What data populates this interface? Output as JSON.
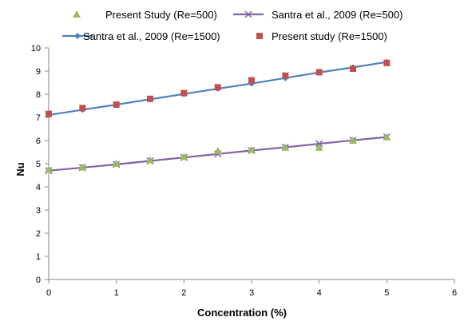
{
  "chart_data": {
    "type": "line",
    "xlabel": "Concentration (%)",
    "ylabel": "Nu",
    "xlim": [
      0,
      6
    ],
    "ylim": [
      0,
      10
    ],
    "xticks": [
      0,
      1,
      2,
      3,
      4,
      5,
      6
    ],
    "yticks": [
      0,
      1,
      2,
      3,
      4,
      5,
      6,
      7,
      8,
      9,
      10
    ],
    "grid": false,
    "legend_position": "top",
    "series": [
      {
        "name": "Present Study (Re=500)",
        "style": "markers",
        "marker": "triangle",
        "color": "#9bbb59",
        "x": [
          0,
          0.5,
          1,
          1.5,
          2,
          2.5,
          3,
          3.5,
          4,
          4.5,
          5
        ],
        "y": [
          4.75,
          4.85,
          5.0,
          5.15,
          5.3,
          5.55,
          5.6,
          5.7,
          5.7,
          6.0,
          6.15
        ]
      },
      {
        "name": "Santra et al., 2009 (Re=500)",
        "style": "line",
        "marker": "x",
        "color": "#8064a2",
        "x": [
          0,
          0.5,
          1,
          1.5,
          2,
          2.5,
          3,
          3.5,
          4,
          4.5,
          5
        ],
        "y": [
          4.7,
          4.83,
          4.97,
          5.12,
          5.27,
          5.42,
          5.57,
          5.71,
          5.86,
          6.01,
          6.15
        ]
      },
      {
        "name": "Santra et al., 2009 (Re=1500)",
        "style": "line",
        "marker": "diamond",
        "color": "#4f81bd",
        "x": [
          0,
          0.5,
          1,
          1.5,
          2,
          2.5,
          3,
          3.5,
          4,
          4.5,
          5
        ],
        "y": [
          7.1,
          7.33,
          7.55,
          7.78,
          8.01,
          8.24,
          8.46,
          8.7,
          8.94,
          9.16,
          9.39
        ]
      },
      {
        "name": "Present study (Re=1500)",
        "style": "markers",
        "marker": "square",
        "color": "#c0504d",
        "x": [
          0,
          0.5,
          1,
          1.5,
          2,
          2.5,
          3,
          3.5,
          4,
          4.5,
          5
        ],
        "y": [
          7.15,
          7.4,
          7.55,
          7.8,
          8.05,
          8.3,
          8.6,
          8.8,
          8.95,
          9.1,
          9.35
        ]
      }
    ]
  }
}
